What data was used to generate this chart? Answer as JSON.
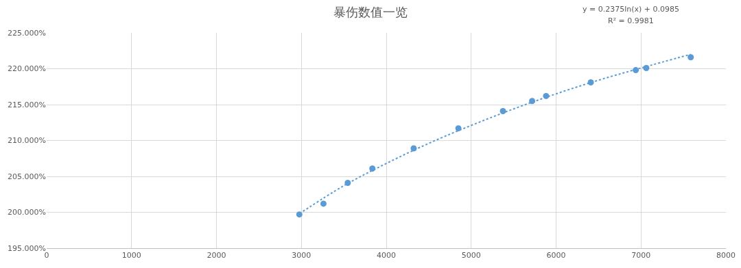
{
  "chart_data": {
    "type": "scatter",
    "title": "暴伤数值一览",
    "annotations": [
      "y = 0.2375ln(x) + 0.0985",
      "R² = 0.9981"
    ],
    "series": [
      {
        "color": "#5b9bd5",
        "marker": "circle",
        "x": [
          2976,
          3260,
          3546,
          3836,
          4323,
          4849,
          5374,
          5718,
          5882,
          6409,
          6938,
          7062,
          7586
        ],
        "values": [
          199.7,
          201.2,
          204.1,
          206.1,
          208.9,
          211.7,
          214.1,
          215.5,
          216.2,
          218.1,
          219.8,
          220.1,
          221.6
        ]
      },
      {
        "type": "line",
        "color": "#5b9bd5",
        "line_style": "dotted",
        "marker": "none",
        "x": [
          2976,
          3500,
          4000,
          4500,
          5000,
          5500,
          6000,
          6500,
          7000,
          7586
        ],
        "values": [
          199.8,
          203.7,
          206.8,
          209.6,
          212.1,
          214.4,
          216.5,
          218.4,
          220.1,
          222.0
        ]
      }
    ],
    "xlim": [
      0,
      8000
    ],
    "xticks": [
      0,
      1000,
      2000,
      3000,
      4000,
      5000,
      6000,
      7000,
      8000
    ],
    "ylim": [
      195,
      225
    ],
    "yticks": [
      {
        "value": 195,
        "label": "195.000%"
      },
      {
        "value": 200,
        "label": "200.000%"
      },
      {
        "value": 205,
        "label": "205.000%"
      },
      {
        "value": 210,
        "label": "210.000%"
      },
      {
        "value": 215,
        "label": "215.000%"
      },
      {
        "value": 220,
        "label": "220.000%"
      },
      {
        "value": 225,
        "label": "225.000%"
      }
    ],
    "grid": true
  }
}
